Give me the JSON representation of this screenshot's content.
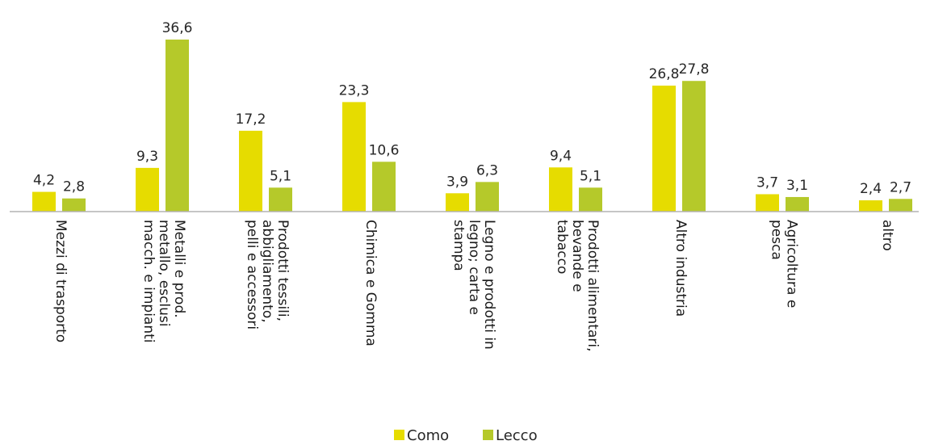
{
  "chart_data": {
    "type": "bar",
    "categories": [
      [
        "Mezzi di trasporto"
      ],
      [
        "Metalli e prod.",
        "metallo, esclusi",
        "macch. e impianti"
      ],
      [
        "Prodotti tessili,",
        "abbigliamento,",
        "pelli e accessori"
      ],
      [
        "Chimica e Gomma"
      ],
      [
        "Legno e prodotti in",
        "legno; carta e",
        "stampa"
      ],
      [
        "Prodotti alimentari,",
        "bevande e",
        "tabacco"
      ],
      [
        "Altro industria"
      ],
      [
        "Agricoltura e",
        "pesca"
      ],
      [
        "altro"
      ]
    ],
    "series": [
      {
        "name": "Como",
        "color": "#e6dc00",
        "values": [
          4.2,
          9.3,
          17.2,
          23.3,
          3.9,
          9.4,
          26.8,
          3.7,
          2.4
        ],
        "labels": [
          "4,2",
          "9,3",
          "17,2",
          "23,3",
          "3,9",
          "9,4",
          "26,8",
          "3,7",
          "2,4"
        ]
      },
      {
        "name": "Lecco",
        "color": "#b5c92a",
        "values": [
          2.8,
          36.6,
          5.1,
          10.6,
          6.3,
          5.1,
          27.8,
          3.1,
          2.7
        ],
        "labels": [
          "2,8",
          "36,6",
          "5,1",
          "10,6",
          "6,3",
          "5,1",
          "27,8",
          "3,1",
          "2,7"
        ]
      }
    ],
    "ylim": [
      0,
      37
    ],
    "grid": false,
    "legend_position": "bottom"
  }
}
